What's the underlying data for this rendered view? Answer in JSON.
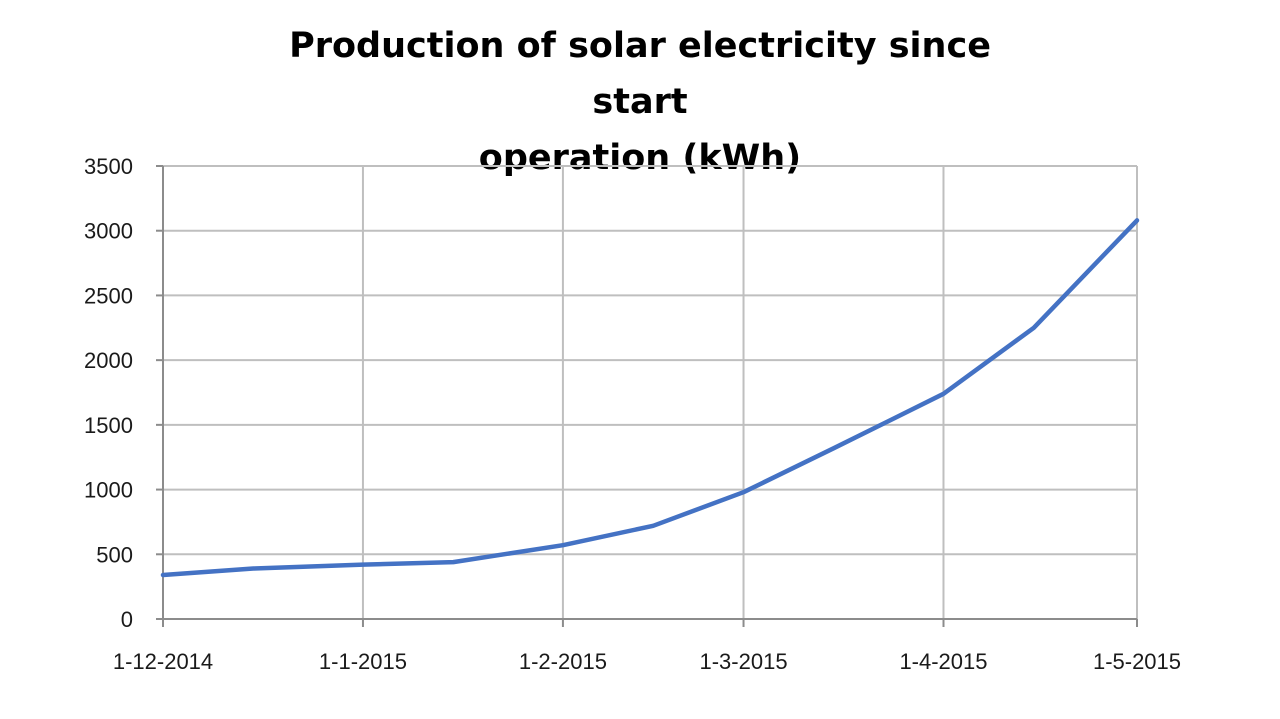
{
  "chart_data": {
    "type": "line",
    "title": "Production of solar electricity since start\noperation  (kWh)",
    "xlabel": "",
    "ylabel": "",
    "x_ticks": [
      "1-12-2014",
      "1-1-2015",
      "1-2-2015",
      "1-3-2015",
      "1-4-2015",
      "1-5-2015"
    ],
    "y_ticks": [
      0,
      500,
      1000,
      1500,
      2000,
      2500,
      3000,
      3500
    ],
    "xlim": [
      "1-12-2014",
      "1-5-2015"
    ],
    "ylim": [
      0,
      3500
    ],
    "grid": true,
    "legend": "none",
    "series": [
      {
        "color": "#4472C4",
        "points": [
          {
            "x": "1-12-2014",
            "y": 340
          },
          {
            "x": "15-12-2014",
            "y": 390
          },
          {
            "x": "1-1-2015",
            "y": 420
          },
          {
            "x": "15-1-2015",
            "y": 440
          },
          {
            "x": "1-2-2015",
            "y": 570
          },
          {
            "x": "15-2-2015",
            "y": 720
          },
          {
            "x": "1-3-2015",
            "y": 980
          },
          {
            "x": "15-3-2015",
            "y": 1320
          },
          {
            "x": "1-4-2015",
            "y": 1740
          },
          {
            "x": "15-4-2015",
            "y": 2250
          },
          {
            "x": "1-5-2015",
            "y": 3080
          }
        ]
      }
    ]
  }
}
